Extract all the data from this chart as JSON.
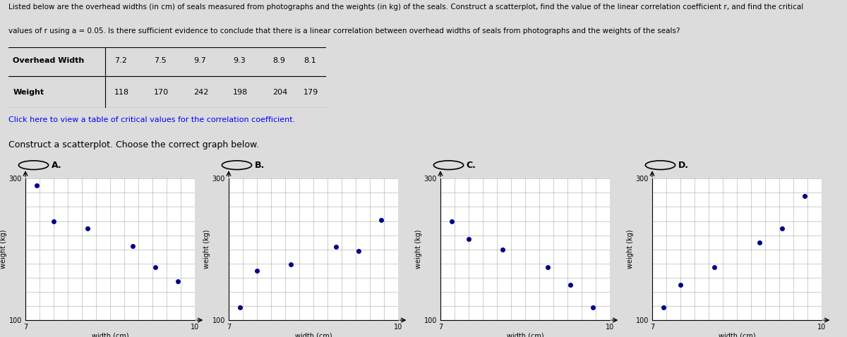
{
  "header_line1": "Listed below are the overhead widths (in cm) of seals measured from photographs and the weights (in kg) of the seals. Construct a scatterplot, find the value of the linear correlation coefficient r, and find the critical",
  "header_line2": "values of r using a = 0.05. Is there sufficient evidence to conclude that there is a linear correlation between overhead widths of seals from photographs and the weights of the seals?",
  "overhead_width": [
    7.2,
    7.5,
    9.7,
    9.3,
    8.9,
    8.1
  ],
  "weight": [
    118,
    170,
    242,
    198,
    204,
    179
  ],
  "xlim": [
    7,
    10
  ],
  "ylim": [
    100,
    300
  ],
  "xlabel": "width (cm)",
  "ylabel": "weight (kg)",
  "dot_color": "#00008B",
  "grid_color": "#aaaaaa",
  "bg_color": "#DCDCDC",
  "subtitle": "Construct a scatterplot. Choose the correct graph below.",
  "link_text": "Click here to view a table of critical values for the correlation coefficient.",
  "panel_labels": [
    "A.",
    "B.",
    "C.",
    "D."
  ],
  "plots": [
    {
      "x": [
        7.2,
        7.5,
        8.1,
        8.9,
        9.3,
        9.7
      ],
      "y": [
        290,
        240,
        230,
        205,
        175,
        155
      ]
    },
    {
      "x": [
        7.2,
        7.5,
        8.1,
        8.9,
        9.3,
        9.7
      ],
      "y": [
        118,
        170,
        179,
        204,
        198,
        242
      ]
    },
    {
      "x": [
        7.2,
        7.5,
        8.1,
        8.9,
        9.3,
        9.7
      ],
      "y": [
        240,
        215,
        200,
        175,
        150,
        118
      ]
    },
    {
      "x": [
        7.2,
        7.5,
        8.1,
        8.9,
        9.3,
        9.7
      ],
      "y": [
        118,
        150,
        175,
        210,
        230,
        275
      ]
    }
  ]
}
